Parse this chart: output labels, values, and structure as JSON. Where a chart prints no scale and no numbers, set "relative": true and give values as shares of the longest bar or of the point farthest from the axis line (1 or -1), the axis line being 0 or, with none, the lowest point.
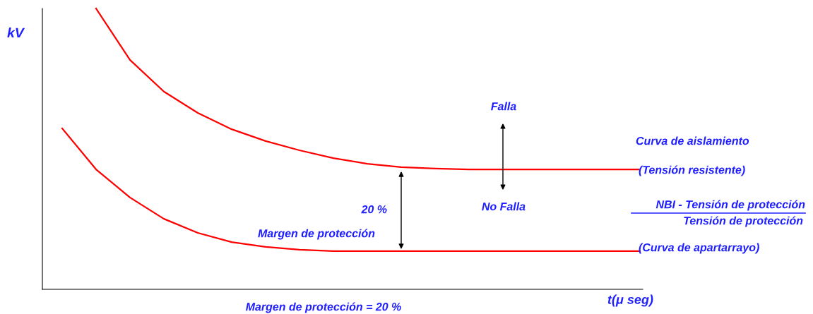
{
  "chart_data": {
    "type": "line",
    "relative": true,
    "ylabel": "kV",
    "xlabel": "t(μ seg)",
    "grid": false,
    "marker": "none",
    "line_style": "solid",
    "categories": [
      null,
      null,
      null,
      null,
      null,
      null,
      null,
      null,
      null,
      null,
      null,
      null,
      null,
      null,
      null,
      null,
      null,
      null
    ],
    "series": [
      {
        "color": "#ff0000",
        "values": [
          null,
          1.0,
          0.817,
          0.704,
          0.628,
          0.57,
          0.528,
          0.495,
          0.467,
          0.447,
          0.435,
          0.43,
          0.427,
          0.427,
          0.427,
          0.427,
          0.427,
          0.427
        ]
      },
      {
        "color": "#ff0000",
        "values": [
          0.573,
          0.427,
          0.327,
          0.251,
          0.201,
          0.168,
          0.151,
          0.141,
          0.136,
          0.136,
          0.136,
          0.136,
          0.136,
          0.136,
          0.136,
          0.136,
          0.136,
          0.136
        ]
      }
    ],
    "annotations": [
      "Falla",
      "No Falla",
      "20 %",
      "Margen de protección",
      "Curva de aislamiento",
      "(Tensión resistente)",
      "NBI - Tensión de protección",
      "Tensión de protección",
      "(Curva de apartarrayo)",
      "Margen de protección = 20 %"
    ]
  }
}
